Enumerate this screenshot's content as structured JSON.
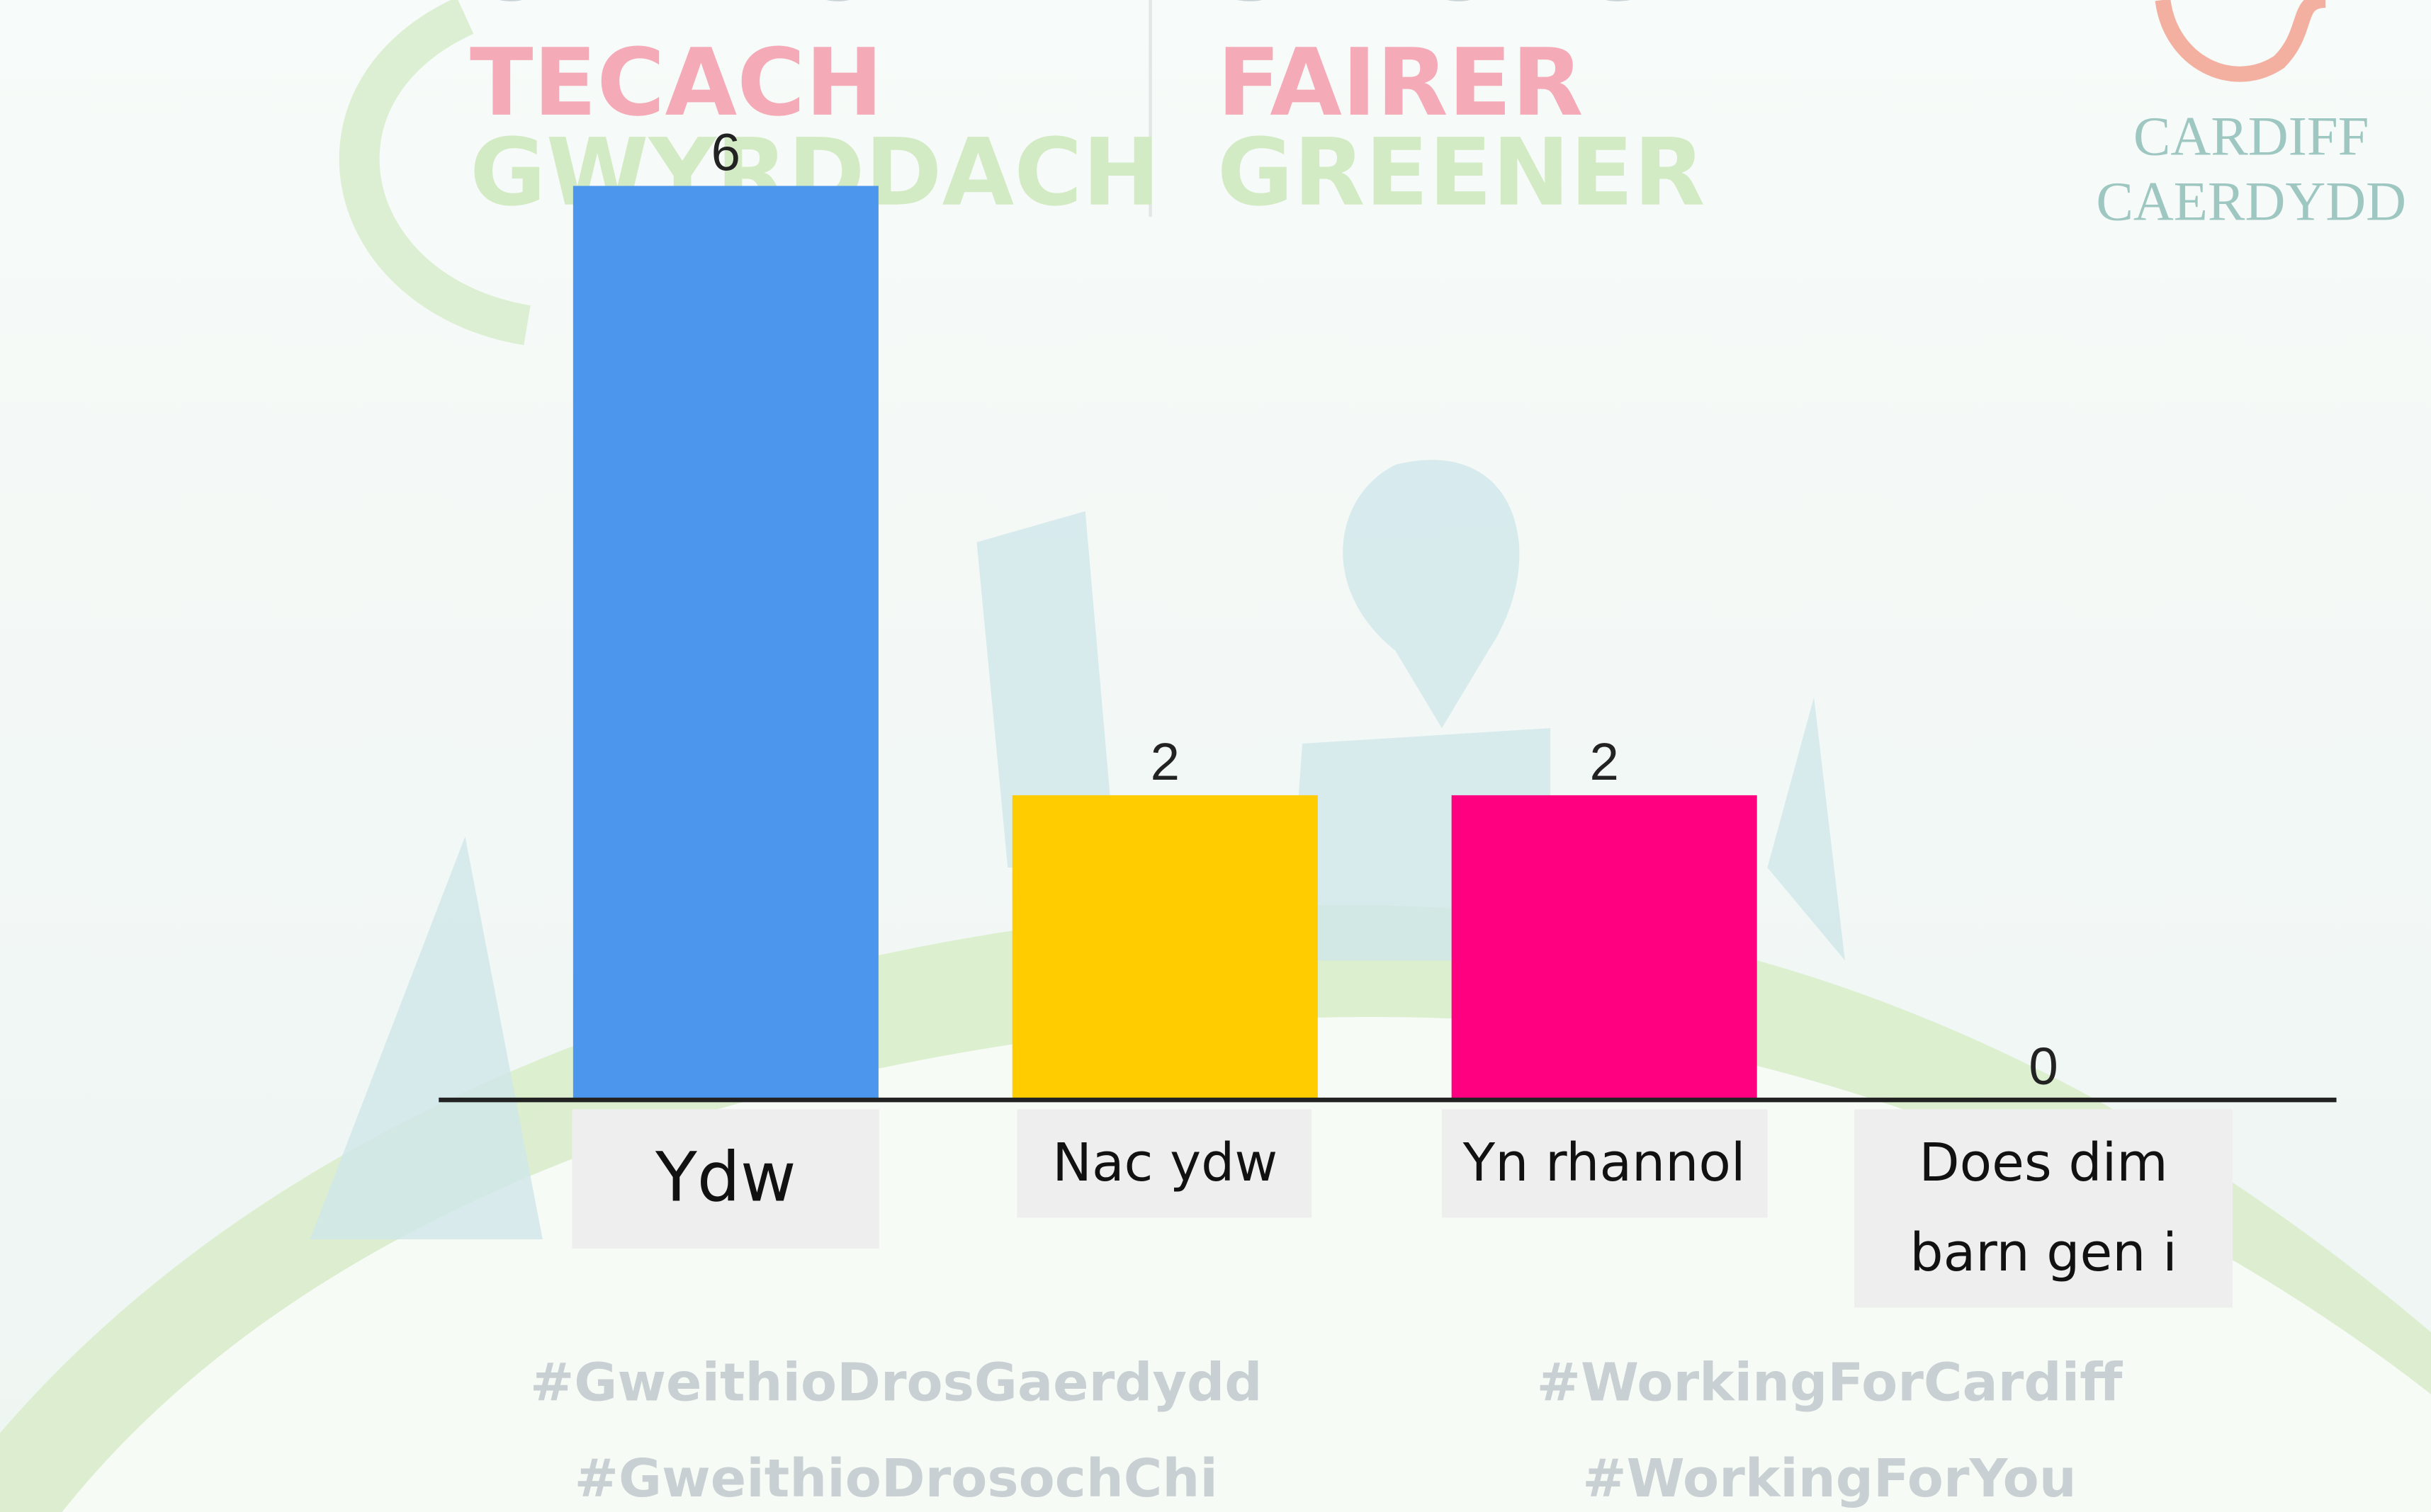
{
  "branding": {
    "welsh": [
      "CRYFACH",
      "TECACH",
      "GWYRDDACH"
    ],
    "english": [
      "STRONGER",
      "FAIRER",
      "GREENER"
    ],
    "logo": [
      "CARDIFF",
      "CAERDYDD"
    ],
    "hashtags_welsh": [
      "#GweithioDrosGaerdydd",
      "#GweithioDrosochChi"
    ],
    "hashtags_english": [
      "#WorkingForCardiff",
      "#WorkingForYou"
    ]
  },
  "chart_data": {
    "type": "bar",
    "categories": [
      "Ydw",
      "Nac ydw",
      "Yn rhannol",
      "Does dim barn gen i"
    ],
    "values": [
      6,
      2,
      2,
      0
    ],
    "colors": [
      "#4d96ee",
      "#ffcc00",
      "#ff0080",
      "#b0b0b0"
    ]
  }
}
